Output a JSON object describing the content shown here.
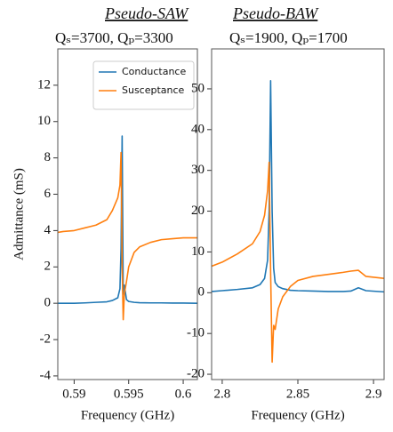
{
  "chart_data": [
    {
      "type": "line",
      "title": "Pseudo-SAW",
      "subtitle": "Qₛ=3700,  Qₚ=3300",
      "xlabel": "Frequency (GHz)",
      "ylabel": "Admittance (mS)",
      "x": [
        0.5885,
        0.589,
        0.59,
        0.591,
        0.592,
        0.593,
        0.5935,
        0.594,
        0.5942,
        0.5943,
        0.5944,
        0.5945,
        0.5946,
        0.5948,
        0.595,
        0.5955,
        0.596,
        0.597,
        0.598,
        0.599,
        0.6,
        0.6013
      ],
      "series": [
        {
          "name": "Conductance",
          "color": "#1f77b4",
          "values": [
            0,
            0,
            0,
            0.02,
            0.05,
            0.08,
            0.15,
            0.3,
            0.8,
            3,
            9.2,
            0.5,
            1.0,
            0.2,
            0.1,
            0.05,
            0.03,
            0.02,
            0.02,
            0.01,
            0.01,
            0
          ]
        },
        {
          "name": "Susceptance",
          "color": "#ff7f0e",
          "values": [
            3.9,
            3.95,
            4.0,
            4.15,
            4.3,
            4.6,
            5.1,
            5.8,
            6.5,
            8.3,
            2,
            -0.9,
            0.5,
            1.2,
            2.0,
            2.8,
            3.1,
            3.35,
            3.5,
            3.55,
            3.6,
            3.6
          ]
        }
      ],
      "xlim": [
        0.5885,
        0.6013
      ],
      "ylim": [
        -4.2,
        14
      ],
      "xticks": [
        0.59,
        0.595,
        0.6
      ],
      "yticks": [
        -4,
        -2,
        0,
        2,
        4,
        6,
        8,
        10,
        12
      ],
      "legend": "upper right"
    },
    {
      "type": "line",
      "title": "Pseudo-BAW",
      "subtitle": "Qₛ=1900,  Qₚ=1700",
      "xlabel": "Frequency (GHz)",
      "x": [
        2.793,
        2.8,
        2.81,
        2.82,
        2.825,
        2.828,
        2.83,
        2.831,
        2.832,
        2.833,
        2.834,
        2.835,
        2.837,
        2.84,
        2.845,
        2.85,
        2.86,
        2.87,
        2.88,
        2.885,
        2.89,
        2.895,
        2.907
      ],
      "series": [
        {
          "color": "#1f77b4",
          "values": [
            0.3,
            0.5,
            0.8,
            1.2,
            2,
            3.5,
            8,
            20,
            52,
            20,
            6,
            2.5,
            1.5,
            1,
            0.6,
            0.5,
            0.4,
            0.3,
            0.3,
            0.4,
            1.2,
            0.5,
            0.2
          ]
        },
        {
          "color": "#ff7f0e",
          "values": [
            6.5,
            7.5,
            9.5,
            12,
            15,
            19,
            25,
            32,
            5,
            -17,
            -8,
            -9,
            -4,
            -1,
            1.5,
            3,
            4,
            4.5,
            5,
            5.3,
            5.5,
            4,
            3.5
          ]
        }
      ],
      "xlim": [
        2.793,
        2.907
      ],
      "ylim": [
        -21.3,
        59.8
      ],
      "xticks": [
        2.8,
        2.85,
        2.9
      ],
      "yticks": [
        -20,
        -10,
        0,
        10,
        20,
        30,
        40,
        50
      ]
    }
  ]
}
